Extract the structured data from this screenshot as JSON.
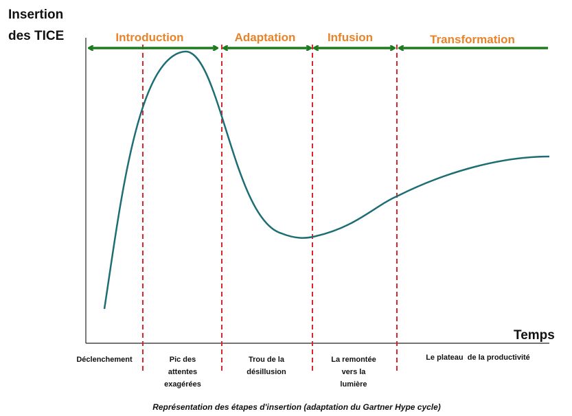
{
  "y_axis_label": [
    "Insertion",
    "des TICE"
  ],
  "x_axis_label": "Temps",
  "phases": [
    "Introduction",
    "Adaptation",
    "Infusion",
    "Transformation"
  ],
  "stages": [
    [
      "Déclenchement"
    ],
    [
      "Pic des",
      "attentes",
      "exagérées"
    ],
    [
      "Trou de la",
      "désillusion"
    ],
    [
      "La remontée",
      "vers la",
      "lumière"
    ],
    [
      "Le plateau  de la productivité"
    ]
  ],
  "caption": "Représentation des étapes d'insertion (adaptation du Gartner Hype cycle)"
}
